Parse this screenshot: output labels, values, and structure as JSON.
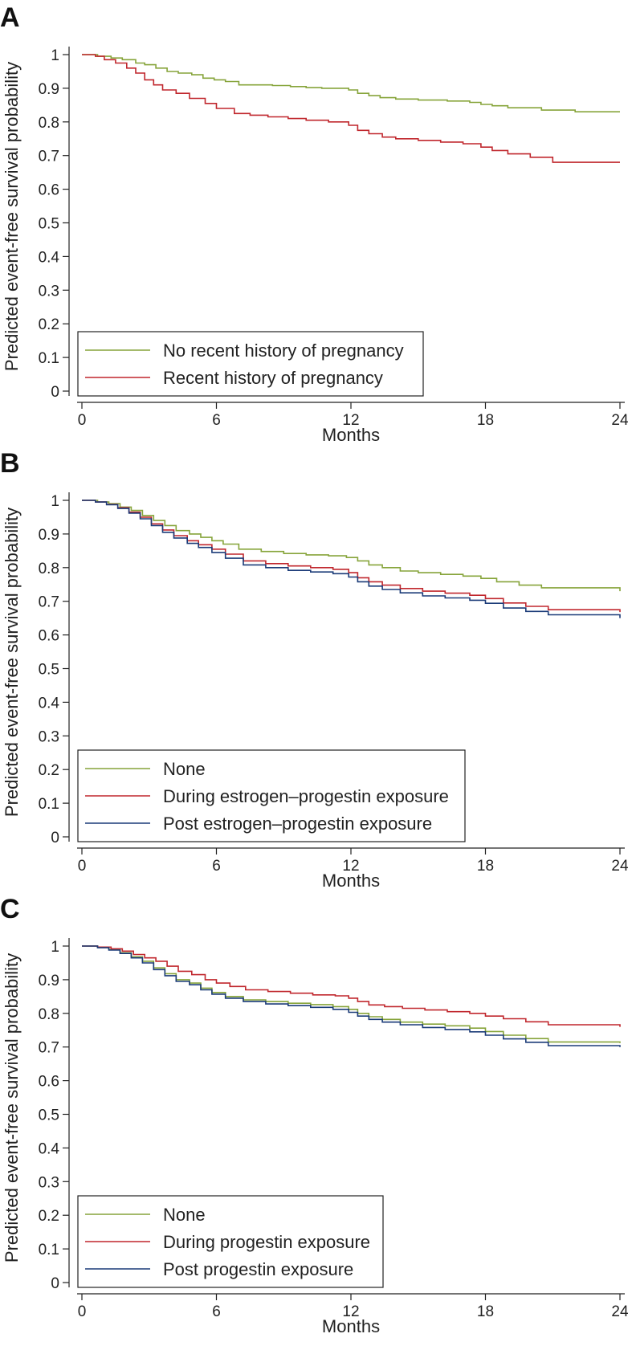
{
  "chart_data": [
    {
      "type": "line",
      "panel": "A",
      "title": "",
      "xlabel": "Months",
      "ylabel": "Predicted event-free survival probability",
      "xlim": [
        0,
        24
      ],
      "ylim": [
        0,
        1
      ],
      "xticks": [
        0,
        6,
        12,
        18,
        24
      ],
      "xtick_labels": [
        "0",
        "6",
        "12",
        "18",
        "24"
      ],
      "yticks": [
        0,
        0.1,
        0.2,
        0.3,
        0.4,
        0.5,
        0.6,
        0.7,
        0.8,
        0.9,
        1
      ],
      "ytick_labels": [
        "0",
        "0.1",
        "0.2",
        "0.3",
        "0.4",
        "0.5",
        "0.6",
        "0.7",
        "0.8",
        "0.9",
        "1"
      ],
      "legend_position": "bottom-left",
      "series": [
        {
          "name": "No recent history of pregnancy",
          "color": "#86a43a",
          "x": [
            0,
            0.7,
            1.3,
            1.8,
            2.4,
            2.8,
            3.3,
            3.8,
            4.3,
            4.9,
            5.4,
            5.9,
            6.4,
            7.0,
            7.8,
            8.5,
            9.3,
            10.0,
            10.7,
            11.5,
            11.9,
            12.3,
            12.8,
            13.3,
            14.0,
            15.0,
            16.3,
            17.3,
            17.8,
            18.3,
            19.0,
            20.5,
            22.0,
            24.0
          ],
          "y": [
            1.0,
            0.995,
            0.99,
            0.985,
            0.975,
            0.97,
            0.96,
            0.95,
            0.945,
            0.94,
            0.93,
            0.925,
            0.92,
            0.91,
            0.91,
            0.908,
            0.905,
            0.902,
            0.9,
            0.9,
            0.895,
            0.885,
            0.878,
            0.872,
            0.868,
            0.865,
            0.862,
            0.858,
            0.852,
            0.848,
            0.842,
            0.835,
            0.83,
            0.83
          ]
        },
        {
          "name": "Recent history of pregnancy",
          "color": "#c0272d",
          "x": [
            0,
            0.6,
            1.0,
            1.5,
            2.0,
            2.4,
            2.8,
            3.2,
            3.6,
            4.2,
            4.8,
            5.5,
            6.0,
            6.8,
            7.5,
            8.3,
            9.2,
            10.0,
            11.0,
            11.5,
            11.9,
            12.3,
            12.8,
            13.4,
            14.0,
            15.0,
            16.0,
            17.0,
            17.8,
            18.3,
            19.0,
            20.0,
            21.0,
            24.0
          ],
          "y": [
            1.0,
            0.995,
            0.985,
            0.975,
            0.96,
            0.945,
            0.925,
            0.91,
            0.895,
            0.885,
            0.87,
            0.855,
            0.84,
            0.825,
            0.82,
            0.815,
            0.81,
            0.805,
            0.8,
            0.8,
            0.79,
            0.775,
            0.765,
            0.755,
            0.75,
            0.745,
            0.74,
            0.735,
            0.725,
            0.715,
            0.705,
            0.695,
            0.68,
            0.68
          ]
        }
      ]
    },
    {
      "type": "line",
      "panel": "B",
      "title": "",
      "xlabel": "Months",
      "ylabel": "Predicted event-free survival probability",
      "xlim": [
        0,
        24
      ],
      "ylim": [
        0,
        1
      ],
      "xticks": [
        0,
        6,
        12,
        18,
        24
      ],
      "xtick_labels": [
        "0",
        "6",
        "12",
        "18",
        "24"
      ],
      "yticks": [
        0,
        0.1,
        0.2,
        0.3,
        0.4,
        0.5,
        0.6,
        0.7,
        0.8,
        0.9,
        1
      ],
      "ytick_labels": [
        "0",
        "0.1",
        "0.2",
        "0.3",
        "0.4",
        "0.5",
        "0.6",
        "0.7",
        "0.8",
        "0.9",
        "1"
      ],
      "legend_position": "bottom-left",
      "series": [
        {
          "name": "None",
          "color": "#86a43a",
          "x": [
            0,
            0.7,
            1.2,
            1.7,
            2.2,
            2.7,
            3.2,
            3.7,
            4.2,
            4.8,
            5.3,
            5.8,
            6.3,
            7.0,
            8.0,
            9.0,
            10.0,
            11.0,
            11.8,
            12.3,
            12.8,
            13.4,
            14.2,
            15.0,
            16.0,
            17.0,
            17.8,
            18.5,
            19.5,
            20.5,
            24.0
          ],
          "y": [
            1.0,
            0.995,
            0.99,
            0.98,
            0.97,
            0.955,
            0.94,
            0.925,
            0.91,
            0.9,
            0.89,
            0.88,
            0.87,
            0.855,
            0.848,
            0.842,
            0.838,
            0.835,
            0.83,
            0.82,
            0.808,
            0.8,
            0.79,
            0.785,
            0.78,
            0.775,
            0.768,
            0.758,
            0.748,
            0.74,
            0.73
          ]
        },
        {
          "name": "During estrogen–progestin exposure",
          "color": "#c0272d",
          "x": [
            0,
            0.6,
            1.1,
            1.6,
            2.1,
            2.6,
            3.1,
            3.6,
            4.1,
            4.7,
            5.2,
            5.8,
            6.4,
            7.2,
            8.2,
            9.2,
            10.2,
            11.2,
            11.9,
            12.3,
            12.8,
            13.4,
            14.2,
            15.2,
            16.2,
            17.3,
            18.0,
            18.8,
            19.8,
            20.8,
            24.0
          ],
          "y": [
            1.0,
            0.995,
            0.988,
            0.978,
            0.965,
            0.95,
            0.93,
            0.912,
            0.895,
            0.88,
            0.868,
            0.855,
            0.84,
            0.82,
            0.812,
            0.805,
            0.8,
            0.795,
            0.785,
            0.77,
            0.758,
            0.748,
            0.738,
            0.73,
            0.724,
            0.718,
            0.708,
            0.695,
            0.685,
            0.675,
            0.668
          ]
        },
        {
          "name": "Post estrogen–progestin exposure",
          "color": "#1b3b78",
          "x": [
            0,
            0.6,
            1.1,
            1.6,
            2.1,
            2.6,
            3.1,
            3.6,
            4.1,
            4.7,
            5.2,
            5.8,
            6.4,
            7.2,
            8.2,
            9.2,
            10.2,
            11.2,
            11.9,
            12.3,
            12.8,
            13.4,
            14.2,
            15.2,
            16.2,
            17.3,
            18.0,
            18.8,
            19.8,
            20.8,
            24.0
          ],
          "y": [
            1.0,
            0.995,
            0.987,
            0.976,
            0.962,
            0.945,
            0.925,
            0.905,
            0.888,
            0.872,
            0.86,
            0.845,
            0.828,
            0.808,
            0.8,
            0.792,
            0.787,
            0.782,
            0.772,
            0.758,
            0.745,
            0.735,
            0.725,
            0.716,
            0.71,
            0.703,
            0.694,
            0.68,
            0.67,
            0.66,
            0.65
          ]
        }
      ]
    },
    {
      "type": "line",
      "panel": "C",
      "title": "",
      "xlabel": "Months",
      "ylabel": "Predicted event-free survival probability",
      "xlim": [
        0,
        24
      ],
      "ylim": [
        0,
        1
      ],
      "xticks": [
        0,
        6,
        12,
        18,
        24
      ],
      "xtick_labels": [
        "0",
        "6",
        "12",
        "18",
        "24"
      ],
      "yticks": [
        0,
        0.1,
        0.2,
        0.3,
        0.4,
        0.5,
        0.6,
        0.7,
        0.8,
        0.9,
        1
      ],
      "ytick_labels": [
        "0",
        "0.1",
        "0.2",
        "0.3",
        "0.4",
        "0.5",
        "0.6",
        "0.7",
        "0.8",
        "0.9",
        "1"
      ],
      "legend_position": "bottom-left",
      "series": [
        {
          "name": "None",
          "color": "#86a43a",
          "x": [
            0,
            0.7,
            1.2,
            1.7,
            2.2,
            2.7,
            3.2,
            3.7,
            4.2,
            4.8,
            5.3,
            5.8,
            6.4,
            7.2,
            8.2,
            9.2,
            10.2,
            11.2,
            11.9,
            12.3,
            12.8,
            13.4,
            14.2,
            15.2,
            16.2,
            17.3,
            18.0,
            18.8,
            19.8,
            20.8,
            24.0
          ],
          "y": [
            1.0,
            0.996,
            0.99,
            0.98,
            0.968,
            0.955,
            0.935,
            0.918,
            0.9,
            0.89,
            0.875,
            0.862,
            0.85,
            0.84,
            0.835,
            0.83,
            0.826,
            0.82,
            0.812,
            0.8,
            0.79,
            0.782,
            0.774,
            0.768,
            0.763,
            0.756,
            0.746,
            0.735,
            0.725,
            0.715,
            0.712
          ]
        },
        {
          "name": "During progestin exposure",
          "color": "#c0272d",
          "x": [
            0,
            0.7,
            1.3,
            1.8,
            2.3,
            2.8,
            3.3,
            3.8,
            4.3,
            4.9,
            5.5,
            6.0,
            6.6,
            7.3,
            8.3,
            9.3,
            10.3,
            11.3,
            11.9,
            12.3,
            12.8,
            13.5,
            14.3,
            15.3,
            16.3,
            17.3,
            18.0,
            18.8,
            19.8,
            20.8,
            24.0
          ],
          "y": [
            1.0,
            0.997,
            0.992,
            0.985,
            0.975,
            0.965,
            0.955,
            0.94,
            0.925,
            0.915,
            0.9,
            0.89,
            0.88,
            0.87,
            0.865,
            0.86,
            0.855,
            0.852,
            0.845,
            0.835,
            0.825,
            0.82,
            0.815,
            0.81,
            0.805,
            0.8,
            0.792,
            0.784,
            0.775,
            0.766,
            0.76
          ]
        },
        {
          "name": "Post progestin exposure",
          "color": "#1b3b78",
          "x": [
            0,
            0.7,
            1.2,
            1.7,
            2.2,
            2.7,
            3.2,
            3.7,
            4.2,
            4.8,
            5.3,
            5.8,
            6.4,
            7.2,
            8.2,
            9.2,
            10.2,
            11.2,
            11.9,
            12.3,
            12.8,
            13.4,
            14.2,
            15.2,
            16.2,
            17.3,
            18.0,
            18.8,
            19.8,
            20.8,
            24.0
          ],
          "y": [
            1.0,
            0.995,
            0.988,
            0.978,
            0.965,
            0.95,
            0.93,
            0.912,
            0.895,
            0.885,
            0.87,
            0.857,
            0.845,
            0.835,
            0.828,
            0.823,
            0.818,
            0.812,
            0.803,
            0.792,
            0.782,
            0.774,
            0.766,
            0.758,
            0.752,
            0.745,
            0.735,
            0.724,
            0.714,
            0.704,
            0.7
          ]
        }
      ]
    }
  ]
}
